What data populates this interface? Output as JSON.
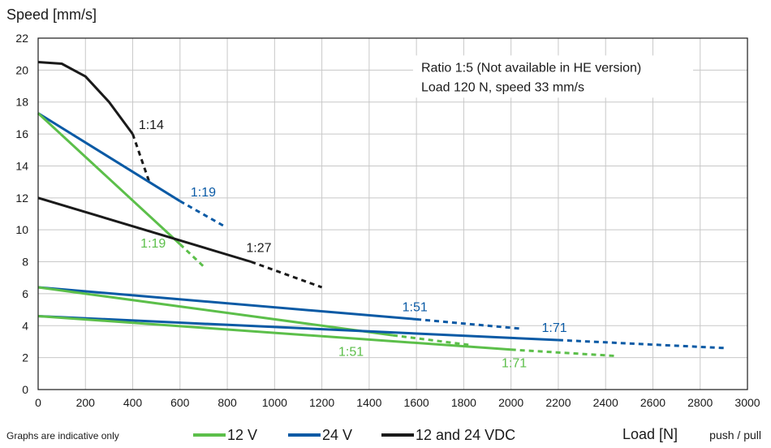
{
  "chart_data": {
    "type": "line",
    "ylabel": "Speed [mm/s]",
    "xlabel": "Load [N]",
    "xlabel_suffix": "push / pull",
    "xlim": [
      0,
      3000
    ],
    "ylim": [
      0,
      22
    ],
    "x_ticks": [
      0,
      200,
      400,
      600,
      800,
      1000,
      1200,
      1400,
      1600,
      1800,
      2000,
      2200,
      2400,
      2600,
      2800,
      3000
    ],
    "y_ticks": [
      0,
      2,
      4,
      6,
      8,
      10,
      12,
      14,
      16,
      18,
      20,
      22
    ],
    "grid": true,
    "colors": {
      "v12": "#5cbf4a",
      "v24": "#0a5aa5",
      "vdc": "#1a1a1a"
    },
    "legend": {
      "placement": "bottom",
      "entries": [
        {
          "label": "12 V",
          "color": "#5cbf4a"
        },
        {
          "label": "24 V",
          "color": "#0a5aa5"
        },
        {
          "label": "12 and 24 VDC",
          "color": "#1a1a1a"
        }
      ]
    },
    "footnote": "Graphs are indicative only",
    "annotation": [
      "Ratio 1:5 (Not available in HE version)",
      "Load 120 N, speed 33 mm/s"
    ],
    "series": [
      {
        "voltage": "12 and 24 VDC",
        "color": "#1a1a1a",
        "label": "1:14",
        "solid": [
          [
            0,
            20.5
          ],
          [
            100,
            20.4
          ],
          [
            200,
            19.6
          ],
          [
            300,
            18.0
          ],
          [
            400,
            16.0
          ]
        ],
        "dashed": [
          [
            400,
            16.0
          ],
          [
            470,
            13.0
          ]
        ]
      },
      {
        "voltage": "24 V",
        "color": "#0a5aa5",
        "label": "1:19",
        "solid": [
          [
            0,
            17.3
          ],
          [
            600,
            11.8
          ]
        ],
        "dashed": [
          [
            600,
            11.8
          ],
          [
            790,
            10.2
          ]
        ]
      },
      {
        "voltage": "12 V",
        "color": "#5cbf4a",
        "label": "1:19",
        "solid": [
          [
            0,
            17.3
          ],
          [
            600,
            9.1
          ]
        ],
        "dashed": [
          [
            600,
            9.1
          ],
          [
            700,
            7.7
          ]
        ]
      },
      {
        "voltage": "12 and 24 VDC",
        "color": "#1a1a1a",
        "label": "1:27",
        "solid": [
          [
            0,
            12.0
          ],
          [
            900,
            8.0
          ]
        ],
        "dashed": [
          [
            900,
            8.0
          ],
          [
            1200,
            6.4
          ]
        ]
      },
      {
        "voltage": "24 V",
        "color": "#0a5aa5",
        "label": "1:51",
        "solid": [
          [
            0,
            6.4
          ],
          [
            1600,
            4.4
          ]
        ],
        "dashed": [
          [
            1600,
            4.4
          ],
          [
            2050,
            3.8
          ]
        ]
      },
      {
        "voltage": "12 V",
        "color": "#5cbf4a",
        "label": "1:51",
        "solid": [
          [
            0,
            6.4
          ],
          [
            1500,
            3.4
          ]
        ],
        "dashed": [
          [
            1500,
            3.4
          ],
          [
            1820,
            2.8
          ]
        ]
      },
      {
        "voltage": "24 V",
        "color": "#0a5aa5",
        "label": "1:71",
        "solid": [
          [
            0,
            4.6
          ],
          [
            2200,
            3.1
          ]
        ],
        "dashed": [
          [
            2200,
            3.1
          ],
          [
            2900,
            2.6
          ]
        ]
      },
      {
        "voltage": "12 V",
        "color": "#5cbf4a",
        "label": "1:71",
        "solid": [
          [
            0,
            4.6
          ],
          [
            2000,
            2.5
          ]
        ],
        "dashed": [
          [
            2000,
            2.5
          ],
          [
            2450,
            2.1
          ]
        ]
      }
    ]
  }
}
